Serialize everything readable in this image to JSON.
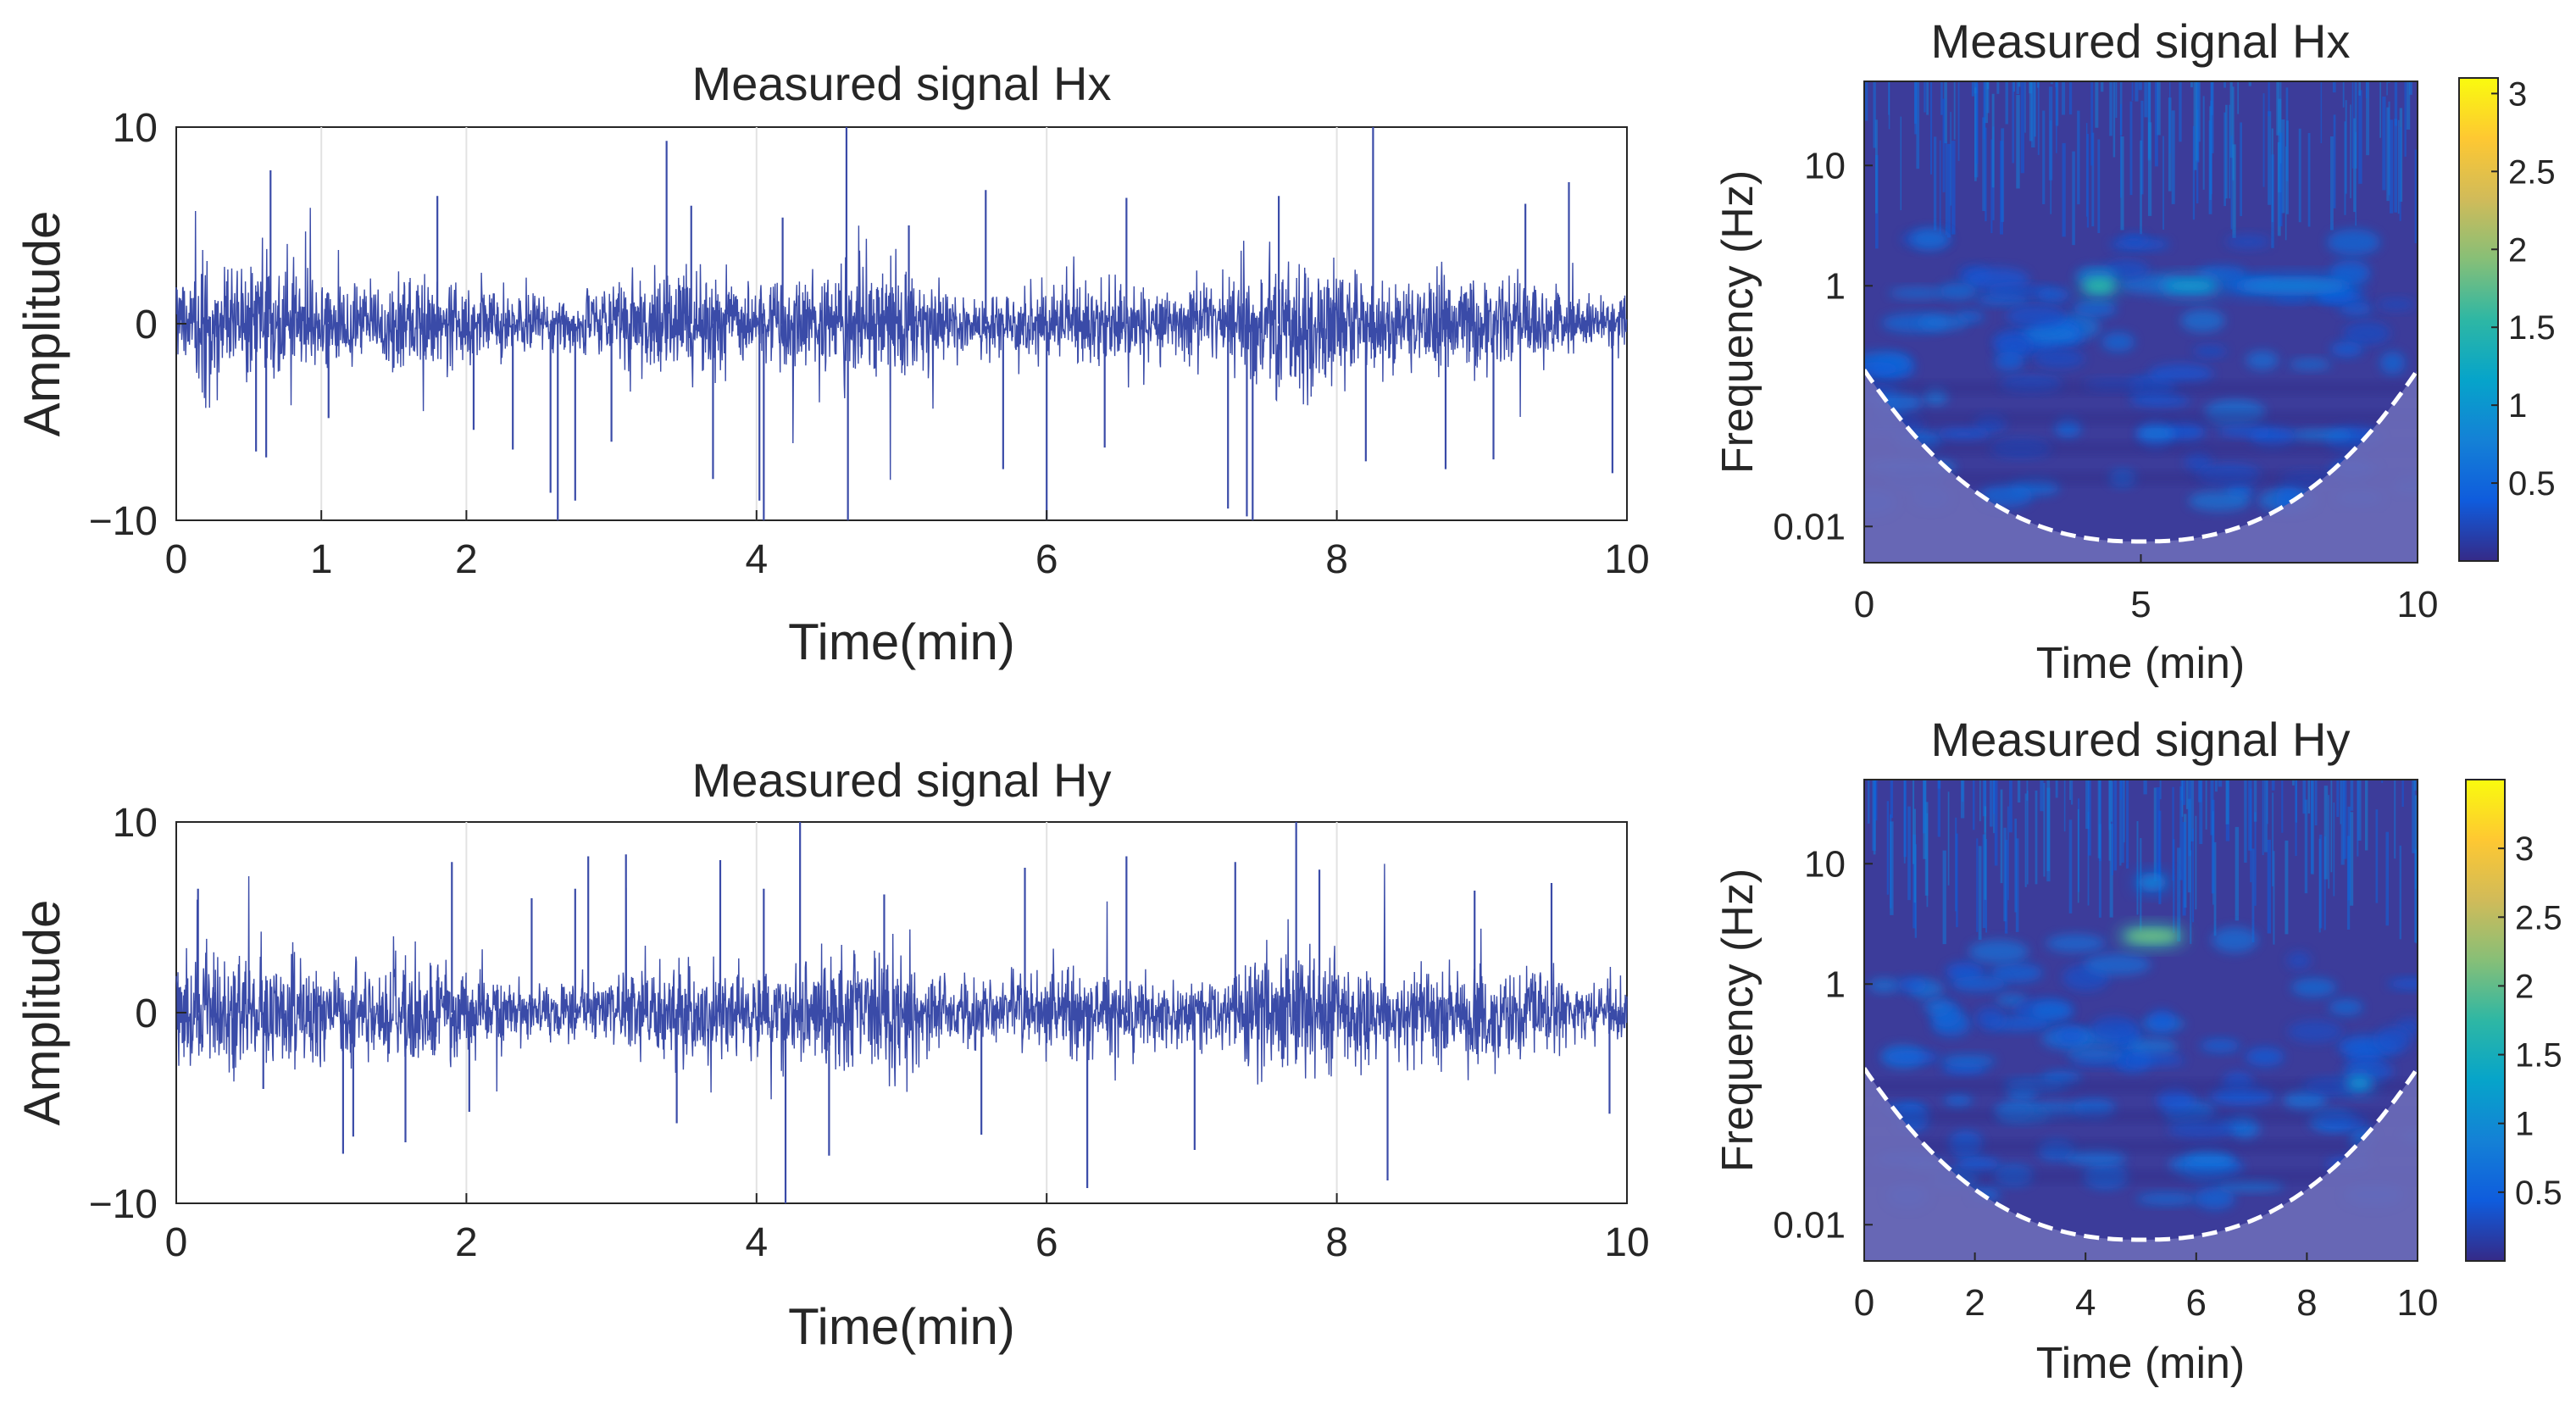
{
  "chart_data": [
    {
      "id": "hx_time",
      "type": "line",
      "title": "Measured signal Hx",
      "xlabel": "Time(min)",
      "ylabel": "Amplitude",
      "xlim": [
        0,
        10
      ],
      "ylim": [
        -10,
        10
      ],
      "xticks": [
        0,
        1,
        2,
        4,
        6,
        8,
        10
      ],
      "yticks": [
        -10,
        0,
        10
      ],
      "xtick_labels": [
        "0",
        "1",
        "2",
        "4",
        "6",
        "8",
        "10"
      ],
      "ytick_labels": [
        "−10",
        "0",
        "10"
      ],
      "grid_x": [
        1,
        2,
        4,
        6,
        8
      ],
      "color": "#3a4ba8",
      "series": [
        {
          "name": "Hx",
          "noise_std": 1.1,
          "base_amplitude": 2.5
        }
      ],
      "spikes": [
        {
          "t": 0.65,
          "v": 7.8
        },
        {
          "t": 0.55,
          "v": -6.5
        },
        {
          "t": 0.62,
          "v": -6.8
        },
        {
          "t": 1.05,
          "v": -4.8
        },
        {
          "t": 1.8,
          "v": 6.5
        },
        {
          "t": 2.05,
          "v": -5.4
        },
        {
          "t": 2.32,
          "v": -6.4
        },
        {
          "t": 2.58,
          "v": -8.6
        },
        {
          "t": 2.63,
          "v": -10
        },
        {
          "t": 2.75,
          "v": -9.0
        },
        {
          "t": 3.0,
          "v": -6.0
        },
        {
          "t": 3.38,
          "v": 9.3
        },
        {
          "t": 3.55,
          "v": 6.0
        },
        {
          "t": 3.7,
          "v": -7.9
        },
        {
          "t": 4.02,
          "v": -9.0
        },
        {
          "t": 4.05,
          "v": -10
        },
        {
          "t": 4.18,
          "v": 5.4
        },
        {
          "t": 4.62,
          "v": 10
        },
        {
          "t": 4.63,
          "v": -10
        },
        {
          "t": 5.05,
          "v": 5.0
        },
        {
          "t": 5.58,
          "v": 6.8
        },
        {
          "t": 5.7,
          "v": -7.4
        },
        {
          "t": 6.0,
          "v": -10
        },
        {
          "t": 6.4,
          "v": -6.3
        },
        {
          "t": 6.55,
          "v": 6.4
        },
        {
          "t": 7.25,
          "v": -9.4
        },
        {
          "t": 7.38,
          "v": -9.8
        },
        {
          "t": 7.42,
          "v": -10
        },
        {
          "t": 7.6,
          "v": 6.5
        },
        {
          "t": 8.25,
          "v": 10
        },
        {
          "t": 8.2,
          "v": -7.0
        },
        {
          "t": 8.75,
          "v": -7.4
        },
        {
          "t": 9.08,
          "v": -6.9
        },
        {
          "t": 9.6,
          "v": 7.2
        },
        {
          "t": 9.3,
          "v": 6.1
        },
        {
          "t": 9.9,
          "v": -7.6
        }
      ]
    },
    {
      "id": "hy_time",
      "type": "line",
      "title": "Measured signal Hy",
      "xlabel": "Time(min)",
      "ylabel": "Amplitude",
      "xlim": [
        0,
        10
      ],
      "ylim": [
        -10,
        10
      ],
      "xticks": [
        0,
        2,
        4,
        6,
        8,
        10
      ],
      "yticks": [
        -10,
        0,
        10
      ],
      "xtick_labels": [
        "0",
        "2",
        "4",
        "6",
        "8",
        "10"
      ],
      "ytick_labels": [
        "−10",
        "0",
        "10"
      ],
      "grid_x": [
        2,
        4,
        6,
        8
      ],
      "color": "#3a4ba8",
      "series": [
        {
          "name": "Hy",
          "noise_std": 1.1,
          "base_amplitude": 2.6
        }
      ],
      "spikes": [
        {
          "t": 0.15,
          "v": 6.5
        },
        {
          "t": 0.6,
          "v": -4.0
        },
        {
          "t": 1.15,
          "v": -7.4
        },
        {
          "t": 1.22,
          "v": -6.5
        },
        {
          "t": 1.58,
          "v": -6.8
        },
        {
          "t": 1.9,
          "v": 7.9
        },
        {
          "t": 2.02,
          "v": -5.2
        },
        {
          "t": 2.45,
          "v": 6.0
        },
        {
          "t": 2.75,
          "v": 6.5
        },
        {
          "t": 2.84,
          "v": 8.2
        },
        {
          "t": 3.1,
          "v": 8.3
        },
        {
          "t": 3.45,
          "v": -5.8
        },
        {
          "t": 3.75,
          "v": 8.0
        },
        {
          "t": 4.05,
          "v": 6.5
        },
        {
          "t": 4.2,
          "v": -10
        },
        {
          "t": 4.3,
          "v": 10
        },
        {
          "t": 4.5,
          "v": -7.5
        },
        {
          "t": 4.88,
          "v": 6.2
        },
        {
          "t": 5.55,
          "v": -6.4
        },
        {
          "t": 5.85,
          "v": 7.6
        },
        {
          "t": 6.28,
          "v": -9.2
        },
        {
          "t": 6.55,
          "v": 8.2
        },
        {
          "t": 7.02,
          "v": -7.2
        },
        {
          "t": 7.3,
          "v": 7.9
        },
        {
          "t": 7.72,
          "v": 10
        },
        {
          "t": 7.88,
          "v": 7.5
        },
        {
          "t": 8.35,
          "v": -8.8
        },
        {
          "t": 8.95,
          "v": 6.4
        },
        {
          "t": 9.48,
          "v": 6.8
        },
        {
          "t": 9.88,
          "v": -5.3
        }
      ]
    },
    {
      "id": "hx_scalogram",
      "type": "heatmap",
      "title": "Measured signal Hx",
      "xlabel": "Time (min)",
      "ylabel": "Frequency (Hz)",
      "xlim": [
        0,
        10
      ],
      "y_scale": "log",
      "ylim": [
        0.005,
        50
      ],
      "xticks": [
        0,
        5,
        10
      ],
      "xtick_labels": [
        "0",
        "5",
        "10"
      ],
      "yticks": [
        0.01,
        1,
        10
      ],
      "ytick_labels": [
        "0.01",
        "1",
        "10"
      ],
      "colorbar": {
        "min": 0,
        "max": 3.1,
        "ticks": [
          0.5,
          1,
          1.5,
          2,
          2.5,
          3
        ],
        "tick_labels": [
          "0.5",
          "1",
          "1.5",
          "2",
          "2.5",
          "3"
        ]
      },
      "cone_of_influence": {
        "apex_time": 5,
        "min_freq": 0.0075,
        "max_freq": 0.2
      },
      "features": [
        {
          "time_start": 3.9,
          "time_end": 4.6,
          "freq": 1.0,
          "magnitude": 1.3
        },
        {
          "time_start": 5.3,
          "time_end": 6.5,
          "freq": 1.0,
          "magnitude": 0.8
        },
        {
          "time_start": 6.5,
          "time_end": 9.0,
          "freq": 1.0,
          "magnitude": 0.5
        }
      ]
    },
    {
      "id": "hy_scalogram",
      "type": "heatmap",
      "title": "Measured signal Hy",
      "xlabel": "Time (min)",
      "ylabel": "Frequency (Hz)",
      "xlim": [
        0,
        10
      ],
      "y_scale": "log",
      "ylim": [
        0.005,
        50
      ],
      "xticks": [
        0,
        2,
        4,
        6,
        8,
        10
      ],
      "xtick_labels": [
        "0",
        "2",
        "4",
        "6",
        "8",
        "10"
      ],
      "yticks": [
        0.01,
        1,
        10
      ],
      "ytick_labels": [
        "0.01",
        "1",
        "10"
      ],
      "colorbar": {
        "min": 0,
        "max": 3.5,
        "ticks": [
          0.5,
          1,
          1.5,
          2,
          2.5,
          3
        ],
        "tick_labels": [
          "0.5",
          "1",
          "1.5",
          "2",
          "2.5",
          "3"
        ]
      },
      "cone_of_influence": {
        "apex_time": 5,
        "min_freq": 0.0075,
        "max_freq": 0.2
      },
      "features": [
        {
          "time_start": 4.6,
          "time_end": 5.8,
          "freq": 2.5,
          "magnitude": 1.8
        },
        {
          "time_start": 4.9,
          "time_end": 5.5,
          "freq": 7.0,
          "magnitude": 0.6
        },
        {
          "time_start": 8.7,
          "time_end": 9.2,
          "freq": 0.15,
          "magnitude": 0.8
        }
      ]
    }
  ]
}
